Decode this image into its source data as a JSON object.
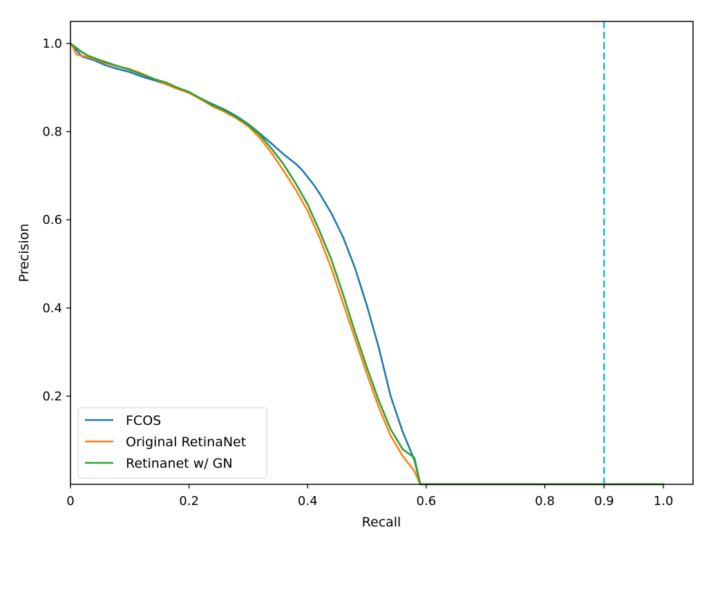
{
  "chart_data": {
    "type": "line",
    "title": "",
    "xlabel": "Recall",
    "ylabel": "Precision",
    "xlim": [
      0,
      1.05
    ],
    "ylim": [
      0,
      1.05
    ],
    "grid": false,
    "legend_position": "lower-left",
    "x_ticks": [
      0,
      0.2,
      0.4,
      0.6,
      0.8,
      0.9,
      1.0
    ],
    "x_tick_labels": [
      "0",
      "0.2",
      "0.4",
      "0.6",
      "0.8",
      "0.9",
      "1.0"
    ],
    "y_ticks": [
      0.2,
      0.4,
      0.6,
      0.8,
      1.0
    ],
    "y_tick_labels": [
      "0.2",
      "0.4",
      "0.6",
      "0.8",
      "1.0"
    ],
    "vertical_line": {
      "x": 0.9,
      "color": "#17becf",
      "style": "dashed"
    },
    "series": [
      {
        "name": "FCOS",
        "color": "#1f77b4",
        "x": [
          0,
          0.01,
          0.02,
          0.04,
          0.06,
          0.08,
          0.1,
          0.12,
          0.14,
          0.16,
          0.18,
          0.2,
          0.22,
          0.24,
          0.26,
          0.28,
          0.3,
          0.32,
          0.34,
          0.35,
          0.36,
          0.38,
          0.39,
          0.4,
          0.41,
          0.42,
          0.44,
          0.46,
          0.48,
          0.5,
          0.52,
          0.54,
          0.56,
          0.58,
          0.59,
          0.6,
          0.7,
          0.8,
          0.9,
          1.0
        ],
        "y": [
          1.0,
          0.985,
          0.97,
          0.962,
          0.95,
          0.942,
          0.935,
          0.925,
          0.917,
          0.908,
          0.898,
          0.888,
          0.875,
          0.862,
          0.85,
          0.835,
          0.817,
          0.795,
          0.772,
          0.76,
          0.748,
          0.727,
          0.714,
          0.697,
          0.68,
          0.66,
          0.615,
          0.56,
          0.49,
          0.405,
          0.31,
          0.2,
          0.12,
          0.055,
          0.0,
          0.0,
          0.0,
          0.0,
          0.0,
          0.0
        ]
      },
      {
        "name": "Original RetinaNet",
        "color": "#ff7f0e",
        "x": [
          0,
          0.005,
          0.01,
          0.02,
          0.04,
          0.06,
          0.08,
          0.1,
          0.12,
          0.14,
          0.16,
          0.18,
          0.2,
          0.22,
          0.24,
          0.26,
          0.28,
          0.3,
          0.32,
          0.34,
          0.36,
          0.38,
          0.4,
          0.42,
          0.44,
          0.46,
          0.48,
          0.5,
          0.52,
          0.54,
          0.56,
          0.58,
          0.59,
          0.6,
          0.7,
          0.8,
          0.9,
          1.0
        ],
        "y": [
          1.0,
          0.99,
          0.975,
          0.972,
          0.965,
          0.955,
          0.948,
          0.942,
          0.932,
          0.92,
          0.908,
          0.897,
          0.888,
          0.873,
          0.857,
          0.845,
          0.83,
          0.812,
          0.785,
          0.75,
          0.71,
          0.668,
          0.62,
          0.56,
          0.49,
          0.41,
          0.33,
          0.25,
          0.175,
          0.11,
          0.065,
          0.03,
          0.0,
          0.0,
          0.0,
          0.0,
          0.0,
          0.0
        ]
      },
      {
        "name": "Retinanet w/ GN",
        "color": "#2ca02c",
        "x": [
          0,
          0.01,
          0.02,
          0.03,
          0.05,
          0.07,
          0.09,
          0.1,
          0.12,
          0.14,
          0.16,
          0.18,
          0.2,
          0.22,
          0.24,
          0.26,
          0.28,
          0.3,
          0.32,
          0.34,
          0.36,
          0.38,
          0.4,
          0.42,
          0.44,
          0.46,
          0.48,
          0.5,
          0.52,
          0.54,
          0.56,
          0.58,
          0.59,
          0.6,
          0.7,
          0.8,
          0.9,
          1.0
        ],
        "y": [
          1.0,
          0.99,
          0.98,
          0.972,
          0.962,
          0.953,
          0.944,
          0.94,
          0.93,
          0.92,
          0.912,
          0.9,
          0.89,
          0.875,
          0.86,
          0.848,
          0.833,
          0.815,
          0.792,
          0.76,
          0.725,
          0.682,
          0.635,
          0.575,
          0.51,
          0.43,
          0.345,
          0.265,
          0.19,
          0.125,
          0.08,
          0.06,
          0.0,
          0.0,
          0.0,
          0.0,
          0.0,
          0.0
        ]
      }
    ]
  }
}
